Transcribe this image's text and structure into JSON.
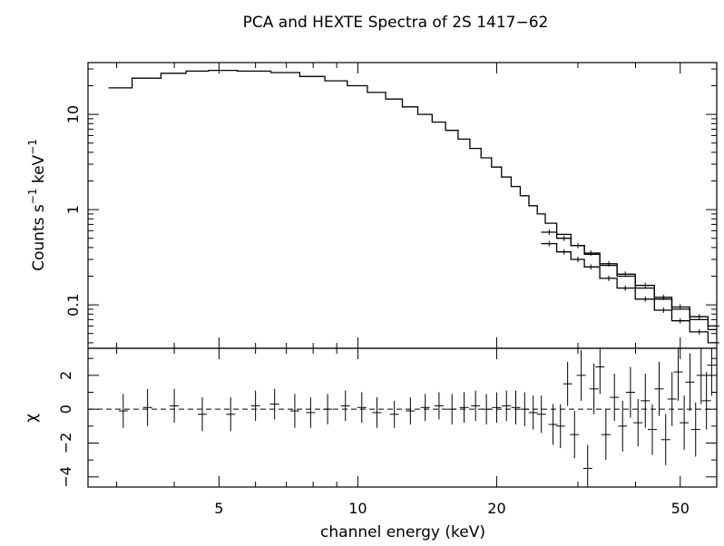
{
  "chart_data": [
    {
      "type": "line",
      "title": "PCA and HEXTE Spectra of 2S 1417−62",
      "ylabel": "Counts s",
      "ylabel_exp1": "−1",
      "ylabel_mid": " keV",
      "ylabel_exp2": "−1",
      "x_scale": "log",
      "y_scale": "log",
      "xlim": [
        2.6,
        60
      ],
      "ylim": [
        0.035,
        35
      ],
      "y_ticks": [
        {
          "value": 0.1,
          "label": "0.1"
        },
        {
          "value": 1,
          "label": "1"
        },
        {
          "value": 10,
          "label": "10"
        }
      ],
      "series": [
        {
          "instrument": "PCA",
          "x": [
            3.0,
            3.5,
            4.0,
            4.5,
            5.0,
            6.0,
            7.0,
            8.0,
            9.0,
            10.0,
            11.0,
            12.0,
            13.0,
            14.0,
            15.0,
            16.0,
            17.0,
            18.0,
            19.0,
            20.0,
            21.0,
            22.0,
            23.0,
            24.0,
            25.0,
            26.0,
            28.0,
            30.0,
            32.0,
            35.0,
            38.0,
            42.0,
            46.0,
            50.0,
            55.0,
            60.0
          ],
          "y": [
            19,
            24,
            27,
            28.5,
            29,
            28.5,
            27.5,
            25,
            22.5,
            20,
            17,
            14.5,
            12,
            10,
            8.3,
            6.8,
            5.5,
            4.4,
            3.5,
            2.8,
            2.2,
            1.75,
            1.4,
            1.1,
            0.9,
            0.72,
            0.55,
            0.42,
            0.34,
            0.26,
            0.2,
            0.15,
            0.115,
            0.09,
            0.07,
            0.055
          ]
        },
        {
          "instrument": "HEXTE",
          "x": [
            26.0,
            28.0,
            30.0,
            32.0,
            35.0,
            38.0,
            42.0,
            46.0,
            50.0,
            55.0,
            60.0
          ],
          "y": [
            0.58,
            0.5,
            0.42,
            0.35,
            0.27,
            0.21,
            0.16,
            0.12,
            0.095,
            0.075,
            0.06
          ]
        },
        {
          "instrument": "HEXTE",
          "x": [
            26.0,
            28.0,
            30.0,
            32.0,
            35.0,
            38.0,
            42.0,
            46.0,
            50.0,
            55.0,
            60.0
          ],
          "y": [
            0.44,
            0.36,
            0.3,
            0.25,
            0.19,
            0.15,
            0.115,
            0.088,
            0.068,
            0.052,
            0.04
          ]
        }
      ]
    },
    {
      "type": "scatter",
      "ylabel": "χ",
      "xlabel": "channel energy (keV)",
      "x_scale": "log",
      "xlim": [
        2.6,
        60
      ],
      "ylim": [
        -4.6,
        3.6
      ],
      "zero_line": "dashed",
      "x_ticks": [
        {
          "value": 5,
          "label": "5"
        },
        {
          "value": 10,
          "label": "10"
        },
        {
          "value": 20,
          "label": "20"
        },
        {
          "value": 50,
          "label": "50"
        }
      ],
      "y_ticks": [
        {
          "value": -4,
          "label": "−4"
        },
        {
          "value": -2,
          "label": "−2"
        },
        {
          "value": 0,
          "label": "0"
        },
        {
          "value": 2,
          "label": "2"
        }
      ],
      "points": [
        {
          "x": 3.1,
          "y": -0.1,
          "err": 1.0
        },
        {
          "x": 3.5,
          "y": 0.1,
          "err": 1.1
        },
        {
          "x": 4.0,
          "y": 0.2,
          "err": 1.0
        },
        {
          "x": 4.6,
          "y": -0.3,
          "err": 1.0
        },
        {
          "x": 5.3,
          "y": -0.3,
          "err": 1.0
        },
        {
          "x": 6.0,
          "y": 0.2,
          "err": 0.9
        },
        {
          "x": 6.6,
          "y": 0.3,
          "err": 0.9
        },
        {
          "x": 7.3,
          "y": -0.1,
          "err": 1.0
        },
        {
          "x": 7.9,
          "y": -0.2,
          "err": 0.9
        },
        {
          "x": 8.6,
          "y": 0.0,
          "err": 0.9
        },
        {
          "x": 9.4,
          "y": 0.2,
          "err": 0.9
        },
        {
          "x": 10.2,
          "y": 0.1,
          "err": 0.9
        },
        {
          "x": 11.0,
          "y": -0.2,
          "err": 0.9
        },
        {
          "x": 12.0,
          "y": -0.3,
          "err": 0.8
        },
        {
          "x": 13.0,
          "y": -0.1,
          "err": 0.8
        },
        {
          "x": 14.0,
          "y": 0.1,
          "err": 0.8
        },
        {
          "x": 15.0,
          "y": 0.2,
          "err": 0.8
        },
        {
          "x": 16.0,
          "y": 0.0,
          "err": 0.9
        },
        {
          "x": 17.0,
          "y": 0.1,
          "err": 0.9
        },
        {
          "x": 18.0,
          "y": 0.2,
          "err": 0.9
        },
        {
          "x": 19.0,
          "y": 0.0,
          "err": 0.9
        },
        {
          "x": 20.0,
          "y": 0.1,
          "err": 0.9
        },
        {
          "x": 21.0,
          "y": 0.2,
          "err": 0.9
        },
        {
          "x": 22.0,
          "y": 0.1,
          "err": 1.0
        },
        {
          "x": 23.0,
          "y": 0.0,
          "err": 1.0
        },
        {
          "x": 24.0,
          "y": -0.2,
          "err": 1.0
        },
        {
          "x": 25.0,
          "y": -0.3,
          "err": 1.1
        },
        {
          "x": 26.5,
          "y": -0.9,
          "err": 1.2
        },
        {
          "x": 27.5,
          "y": -1.0,
          "err": 1.3
        },
        {
          "x": 28.5,
          "y": 1.5,
          "err": 1.3
        },
        {
          "x": 29.5,
          "y": -1.5,
          "err": 1.4
        },
        {
          "x": 30.5,
          "y": 2.0,
          "err": 1.5
        },
        {
          "x": 31.5,
          "y": -3.5,
          "err": 1.4
        },
        {
          "x": 32.5,
          "y": 1.2,
          "err": 1.5
        },
        {
          "x": 33.5,
          "y": 2.5,
          "err": 1.6
        },
        {
          "x": 34.5,
          "y": -1.5,
          "err": 1.5
        },
        {
          "x": 36.0,
          "y": 0.7,
          "err": 1.4
        },
        {
          "x": 37.5,
          "y": -1.0,
          "err": 1.5
        },
        {
          "x": 39.0,
          "y": 1.0,
          "err": 1.5
        },
        {
          "x": 40.5,
          "y": -0.8,
          "err": 1.4
        },
        {
          "x": 42.0,
          "y": 0.5,
          "err": 1.6
        },
        {
          "x": 43.5,
          "y": -1.2,
          "err": 1.5
        },
        {
          "x": 45.0,
          "y": 1.2,
          "err": 1.6
        },
        {
          "x": 46.5,
          "y": -1.8,
          "err": 1.5
        },
        {
          "x": 48.0,
          "y": 0.6,
          "err": 1.6
        },
        {
          "x": 49.5,
          "y": 2.2,
          "err": 1.7
        },
        {
          "x": 51.0,
          "y": -0.8,
          "err": 1.6
        },
        {
          "x": 52.5,
          "y": 1.6,
          "err": 1.7
        },
        {
          "x": 54.0,
          "y": -1.2,
          "err": 1.6
        },
        {
          "x": 55.5,
          "y": 2.0,
          "err": 1.7
        },
        {
          "x": 57.0,
          "y": 0.5,
          "err": 1.7
        },
        {
          "x": 58.5,
          "y": 2.6,
          "err": 1.8
        }
      ]
    }
  ]
}
